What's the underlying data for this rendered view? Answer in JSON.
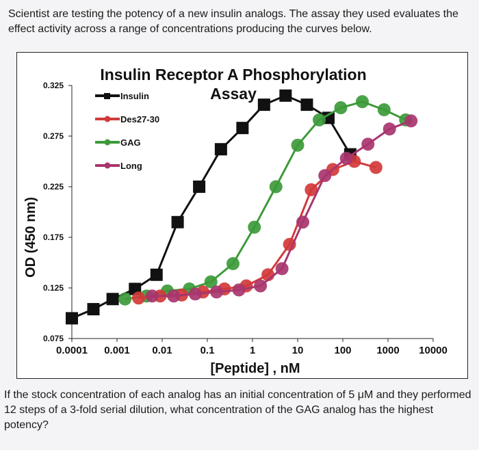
{
  "question_intro": "Scientist are testing the potency of a new insulin analogs. The assay they used evaluates the effect activity across a range of concentrations producing the curves below.",
  "question_body": "If the stock concentration of each analog has an initial concentration of 5 μM and they performed 12 steps of a 3-fold serial dilution, what concentration of the GAG analog has the highest potency?",
  "chart_data": {
    "type": "line",
    "title": "Insulin Receptor A Phosphorylation",
    "subtitle": "Assay",
    "xlabel": "[Peptide] , nM",
    "ylabel": "OD (450 nm)",
    "x_scale": "log",
    "xlim": [
      0.0001,
      10000
    ],
    "ylim": [
      0.075,
      0.325
    ],
    "x_ticks": [
      "0.0001",
      "0.001",
      "0.01",
      "0.1",
      "1",
      "10",
      "100",
      "1000",
      "10000"
    ],
    "y_ticks": [
      "0.325",
      "0.275",
      "0.225",
      "0.175",
      "0.125",
      "0.075"
    ],
    "legend_position": "top-left",
    "series": [
      {
        "name": "Insulin",
        "color": "#111111",
        "marker": "square",
        "x": [
          0.0001,
          0.0003,
          0.0008,
          0.0025,
          0.0075,
          0.022,
          0.066,
          0.2,
          0.6,
          1.8,
          5.4,
          16,
          48,
          146
        ],
        "y": [
          0.095,
          0.104,
          0.114,
          0.124,
          0.138,
          0.19,
          0.225,
          0.262,
          0.283,
          0.306,
          0.315,
          0.306,
          0.293,
          0.257
        ]
      },
      {
        "name": "Des27-30",
        "color": "#d23a3a",
        "marker": "circle",
        "x": [
          0.003,
          0.009,
          0.027,
          0.08,
          0.24,
          0.73,
          2.2,
          6.6,
          20,
          60,
          180,
          540
        ],
        "y": [
          0.115,
          0.117,
          0.118,
          0.121,
          0.124,
          0.127,
          0.138,
          0.168,
          0.222,
          0.242,
          0.25,
          0.244
        ]
      },
      {
        "name": "GAG",
        "color": "#3c9a38",
        "marker": "circle",
        "x": [
          0.0015,
          0.0045,
          0.013,
          0.04,
          0.12,
          0.37,
          1.1,
          3.3,
          10,
          30,
          90,
          270,
          820,
          2460
        ],
        "y": [
          0.114,
          0.117,
          0.122,
          0.124,
          0.131,
          0.149,
          0.185,
          0.225,
          0.266,
          0.291,
          0.303,
          0.309,
          0.301,
          0.291
        ]
      },
      {
        "name": "Long",
        "color": "#a8356e",
        "marker": "circle",
        "x": [
          0.006,
          0.018,
          0.054,
          0.16,
          0.5,
          1.5,
          4.5,
          13,
          40,
          120,
          360,
          1080,
          3240
        ],
        "y": [
          0.117,
          0.117,
          0.119,
          0.121,
          0.123,
          0.127,
          0.144,
          0.19,
          0.236,
          0.253,
          0.267,
          0.282,
          0.29
        ]
      }
    ]
  }
}
